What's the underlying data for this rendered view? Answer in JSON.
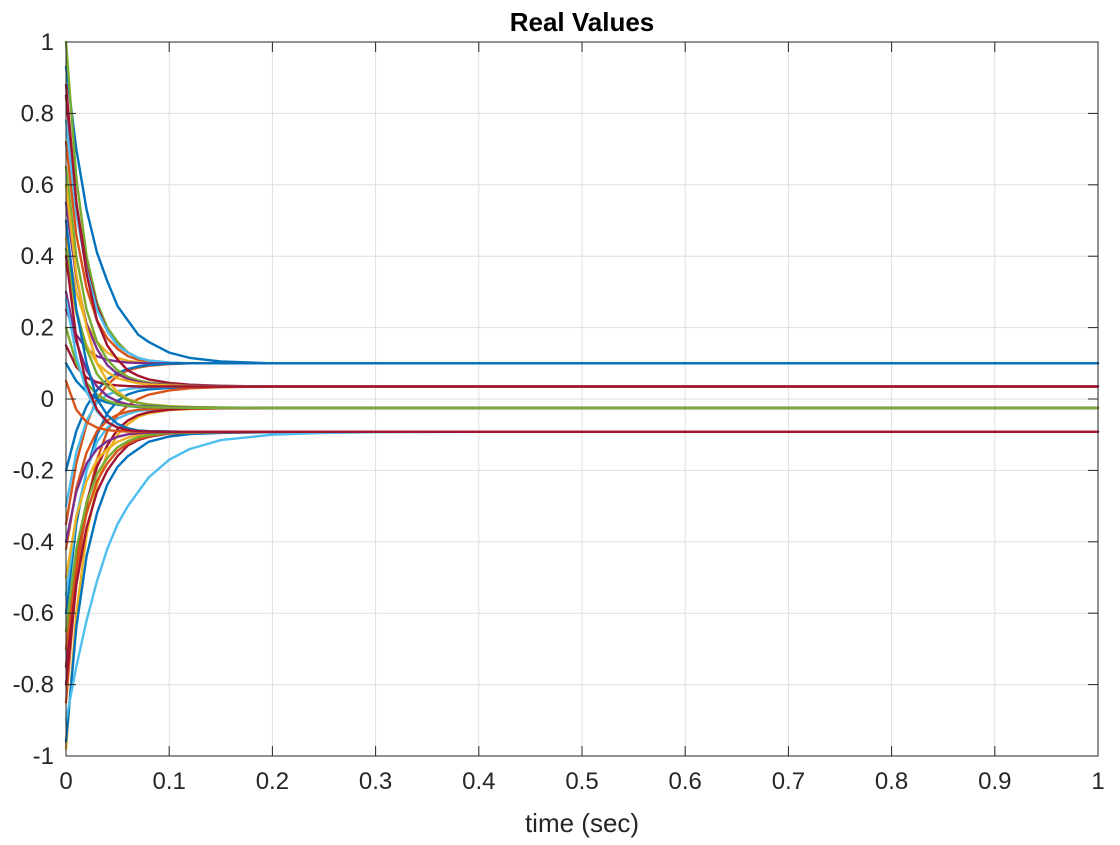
{
  "chart_data": {
    "type": "line",
    "title": "Real Values",
    "xlabel": "time (sec)",
    "ylabel": "",
    "xlim": [
      0,
      1
    ],
    "ylim": [
      -1,
      1
    ],
    "xticks": [
      "0",
      "0.1",
      "0.2",
      "0.3",
      "0.4",
      "0.5",
      "0.6",
      "0.7",
      "0.8",
      "0.9",
      "1"
    ],
    "yticks": [
      "1",
      "0.8",
      "0.6",
      "0.4",
      "0.2",
      "0",
      "-0.2",
      "-0.4",
      "-0.6",
      "-0.8",
      "-1"
    ],
    "grid": true,
    "legend": "none",
    "x": [
      0,
      0.01,
      0.02,
      0.03,
      0.04,
      0.05,
      0.06,
      0.07,
      0.08,
      0.1,
      0.12,
      0.15,
      0.2,
      0.25,
      0.3,
      0.4,
      0.5,
      0.7,
      1.0
    ],
    "series": [
      {
        "color": "#0072BD",
        "values": [
          0.93,
          0.7,
          0.53,
          0.41,
          0.33,
          0.26,
          0.22,
          0.18,
          0.16,
          0.13,
          0.115,
          0.105,
          0.1,
          0.1,
          0.1,
          0.1,
          0.1,
          0.1,
          0.1
        ]
      },
      {
        "color": "#D95319",
        "values": [
          0.72,
          0.46,
          0.31,
          0.22,
          0.17,
          0.14,
          0.12,
          0.11,
          0.105,
          0.1,
          0.1,
          0.1,
          0.1,
          0.1,
          0.1,
          0.1,
          0.1,
          0.1,
          0.1
        ]
      },
      {
        "color": "#77AC30",
        "values": [
          1.0,
          0.62,
          0.4,
          0.27,
          0.2,
          0.16,
          0.13,
          0.115,
          0.108,
          0.102,
          0.1,
          0.1,
          0.1,
          0.1,
          0.1,
          0.1,
          0.1,
          0.1,
          0.1
        ]
      },
      {
        "color": "#A2142F",
        "values": [
          0.85,
          0.55,
          0.37,
          0.26,
          0.19,
          0.15,
          0.13,
          0.115,
          0.107,
          0.101,
          0.1,
          0.1,
          0.1,
          0.1,
          0.1,
          0.1,
          0.1,
          0.1,
          0.1
        ]
      },
      {
        "color": "#EDB120",
        "values": [
          0.45,
          0.3,
          0.21,
          0.16,
          0.13,
          0.115,
          0.107,
          0.103,
          0.101,
          0.1,
          0.1,
          0.1,
          0.1,
          0.1,
          0.1,
          0.1,
          0.1,
          0.1,
          0.1
        ]
      },
      {
        "color": "#4DBEEE",
        "values": [
          0.78,
          0.52,
          0.36,
          0.25,
          0.19,
          0.15,
          0.13,
          0.115,
          0.108,
          0.102,
          0.1,
          0.1,
          0.1,
          0.1,
          0.1,
          0.1,
          0.1,
          0.1,
          0.1
        ]
      },
      {
        "color": "#7E2F8E",
        "values": [
          0.25,
          0.18,
          0.14,
          0.12,
          0.11,
          0.105,
          0.102,
          0.101,
          0.1,
          0.1,
          0.1,
          0.1,
          0.1,
          0.1,
          0.1,
          0.1,
          0.1,
          0.1,
          0.1
        ]
      },
      {
        "color": "#D95319",
        "values": [
          -0.35,
          -0.18,
          -0.07,
          0.0,
          0.04,
          0.065,
          0.08,
          0.088,
          0.093,
          0.098,
          0.1,
          0.1,
          0.1,
          0.1,
          0.1,
          0.1,
          0.1,
          0.1,
          0.1
        ]
      },
      {
        "color": "#0072BD",
        "values": [
          -0.2,
          -0.09,
          -0.02,
          0.025,
          0.055,
          0.073,
          0.084,
          0.091,
          0.095,
          0.099,
          0.1,
          0.1,
          0.1,
          0.1,
          0.1,
          0.1,
          0.1,
          0.1,
          0.1
        ]
      },
      {
        "color": "#A2142F",
        "values": [
          0.88,
          0.55,
          0.35,
          0.22,
          0.15,
          0.11,
          0.08,
          0.065,
          0.055,
          0.045,
          0.04,
          0.037,
          0.035,
          0.035,
          0.035,
          0.035,
          0.035,
          0.035,
          0.035
        ]
      },
      {
        "color": "#77AC30",
        "values": [
          0.65,
          0.4,
          0.25,
          0.16,
          0.11,
          0.08,
          0.062,
          0.052,
          0.046,
          0.04,
          0.037,
          0.036,
          0.035,
          0.035,
          0.035,
          0.035,
          0.035,
          0.035,
          0.035
        ]
      },
      {
        "color": "#7E2F8E",
        "values": [
          0.55,
          0.34,
          0.21,
          0.14,
          0.095,
          0.07,
          0.056,
          0.048,
          0.043,
          0.039,
          0.037,
          0.036,
          0.035,
          0.035,
          0.035,
          0.035,
          0.035,
          0.035,
          0.035
        ]
      },
      {
        "color": "#EDB120",
        "values": [
          0.38,
          0.24,
          0.15,
          0.1,
          0.075,
          0.058,
          0.05,
          0.044,
          0.041,
          0.038,
          0.036,
          0.035,
          0.035,
          0.035,
          0.035,
          0.035,
          0.035,
          0.035,
          0.035
        ]
      },
      {
        "color": "#0072BD",
        "values": [
          -0.6,
          -0.35,
          -0.2,
          -0.1,
          -0.04,
          -0.005,
          0.013,
          0.022,
          0.027,
          0.031,
          0.033,
          0.034,
          0.035,
          0.035,
          0.035,
          0.035,
          0.035,
          0.035,
          0.035
        ]
      },
      {
        "color": "#4DBEEE",
        "values": [
          -0.3,
          -0.15,
          -0.06,
          -0.01,
          0.012,
          0.022,
          0.028,
          0.031,
          0.033,
          0.034,
          0.035,
          0.035,
          0.035,
          0.035,
          0.035,
          0.035,
          0.035,
          0.035,
          0.035
        ]
      },
      {
        "color": "#D95319",
        "values": [
          -0.85,
          -0.5,
          -0.3,
          -0.17,
          -0.09,
          -0.045,
          -0.018,
          0.0,
          0.012,
          0.024,
          0.03,
          0.033,
          0.035,
          0.035,
          0.035,
          0.035,
          0.035,
          0.035,
          0.035
        ]
      },
      {
        "color": "#A2142F",
        "values": [
          0.15,
          0.09,
          0.06,
          0.047,
          0.041,
          0.038,
          0.036,
          0.035,
          0.035,
          0.035,
          0.035,
          0.035,
          0.035,
          0.035,
          0.035,
          0.035,
          0.035,
          0.035,
          0.035
        ]
      },
      {
        "color": "#EDB120",
        "values": [
          0.6,
          0.35,
          0.2,
          0.1,
          0.05,
          0.02,
          0.0,
          -0.01,
          -0.015,
          -0.02,
          -0.022,
          -0.024,
          -0.025,
          -0.025,
          -0.025,
          -0.025,
          -0.025,
          -0.025,
          -0.025
        ]
      },
      {
        "color": "#77AC30",
        "values": [
          0.42,
          0.25,
          0.14,
          0.07,
          0.035,
          0.012,
          -0.003,
          -0.011,
          -0.016,
          -0.021,
          -0.023,
          -0.024,
          -0.025,
          -0.025,
          -0.025,
          -0.025,
          -0.025,
          -0.025,
          -0.025
        ]
      },
      {
        "color": "#7E2F8E",
        "values": [
          0.3,
          0.16,
          0.08,
          0.035,
          0.008,
          -0.007,
          -0.015,
          -0.019,
          -0.021,
          -0.023,
          -0.024,
          -0.025,
          -0.025,
          -0.025,
          -0.025,
          -0.025,
          -0.025,
          -0.025,
          -0.025
        ]
      },
      {
        "color": "#EDB120",
        "values": [
          -0.98,
          -0.6,
          -0.38,
          -0.24,
          -0.15,
          -0.1,
          -0.07,
          -0.05,
          -0.04,
          -0.031,
          -0.028,
          -0.026,
          -0.025,
          -0.025,
          -0.025,
          -0.025,
          -0.025,
          -0.025,
          -0.025
        ]
      },
      {
        "color": "#4DBEEE",
        "values": [
          -0.55,
          -0.33,
          -0.2,
          -0.12,
          -0.08,
          -0.055,
          -0.042,
          -0.034,
          -0.03,
          -0.027,
          -0.026,
          -0.025,
          -0.025,
          -0.025,
          -0.025,
          -0.025,
          -0.025,
          -0.025,
          -0.025
        ]
      },
      {
        "color": "#D95319",
        "values": [
          -0.42,
          -0.25,
          -0.15,
          -0.09,
          -0.06,
          -0.044,
          -0.035,
          -0.03,
          -0.028,
          -0.026,
          -0.025,
          -0.025,
          -0.025,
          -0.025,
          -0.025,
          -0.025,
          -0.025,
          -0.025,
          -0.025
        ]
      },
      {
        "color": "#0072BD",
        "values": [
          0.1,
          0.05,
          0.02,
          0.0,
          -0.01,
          -0.016,
          -0.02,
          -0.022,
          -0.023,
          -0.024,
          -0.025,
          -0.025,
          -0.025,
          -0.025,
          -0.025,
          -0.025,
          -0.025,
          -0.025,
          -0.025
        ]
      },
      {
        "color": "#A2142F",
        "values": [
          -0.75,
          -0.46,
          -0.29,
          -0.19,
          -0.13,
          -0.085,
          -0.06,
          -0.045,
          -0.037,
          -0.03,
          -0.027,
          -0.026,
          -0.025,
          -0.025,
          -0.025,
          -0.025,
          -0.025,
          -0.025,
          -0.025
        ]
      },
      {
        "color": "#77AC30",
        "values": [
          0.2,
          0.1,
          0.045,
          0.012,
          -0.005,
          -0.014,
          -0.019,
          -0.021,
          -0.023,
          -0.024,
          -0.025,
          -0.025,
          -0.025,
          -0.025,
          -0.025,
          -0.025,
          -0.025,
          -0.025,
          -0.025
        ]
      },
      {
        "color": "#0072BD",
        "values": [
          -0.96,
          -0.64,
          -0.44,
          -0.32,
          -0.24,
          -0.19,
          -0.16,
          -0.14,
          -0.12,
          -0.105,
          -0.098,
          -0.095,
          -0.093,
          -0.092,
          -0.092,
          -0.092,
          -0.092,
          -0.092,
          -0.092
        ]
      },
      {
        "color": "#4DBEEE",
        "values": [
          -0.9,
          -0.75,
          -0.62,
          -0.51,
          -0.42,
          -0.35,
          -0.3,
          -0.26,
          -0.22,
          -0.17,
          -0.14,
          -0.115,
          -0.1,
          -0.095,
          -0.093,
          -0.092,
          -0.092,
          -0.092,
          -0.092
        ]
      },
      {
        "color": "#A2142F",
        "values": [
          -0.8,
          -0.52,
          -0.36,
          -0.26,
          -0.2,
          -0.16,
          -0.13,
          -0.115,
          -0.106,
          -0.097,
          -0.094,
          -0.093,
          -0.092,
          -0.092,
          -0.092,
          -0.092,
          -0.092,
          -0.092,
          -0.092
        ]
      },
      {
        "color": "#D95319",
        "values": [
          -0.7,
          -0.46,
          -0.32,
          -0.23,
          -0.18,
          -0.145,
          -0.125,
          -0.112,
          -0.104,
          -0.096,
          -0.094,
          -0.093,
          -0.092,
          -0.092,
          -0.092,
          -0.092,
          -0.092,
          -0.092,
          -0.092
        ]
      },
      {
        "color": "#EDB120",
        "values": [
          -0.5,
          -0.33,
          -0.23,
          -0.17,
          -0.14,
          -0.12,
          -0.108,
          -0.101,
          -0.097,
          -0.094,
          -0.093,
          -0.092,
          -0.092,
          -0.092,
          -0.092,
          -0.092,
          -0.092,
          -0.092,
          -0.092
        ]
      },
      {
        "color": "#77AC30",
        "values": [
          -0.65,
          -0.42,
          -0.29,
          -0.21,
          -0.165,
          -0.135,
          -0.118,
          -0.107,
          -0.101,
          -0.095,
          -0.093,
          -0.092,
          -0.092,
          -0.092,
          -0.092,
          -0.092,
          -0.092,
          -0.092,
          -0.092
        ]
      },
      {
        "color": "#7E2F8E",
        "values": [
          -0.4,
          -0.26,
          -0.18,
          -0.14,
          -0.118,
          -0.106,
          -0.099,
          -0.096,
          -0.094,
          -0.093,
          -0.092,
          -0.092,
          -0.092,
          -0.092,
          -0.092,
          -0.092,
          -0.092,
          -0.092,
          -0.092
        ]
      },
      {
        "color": "#0072BD",
        "values": [
          0.5,
          0.25,
          0.1,
          0.0,
          -0.045,
          -0.07,
          -0.082,
          -0.088,
          -0.09,
          -0.091,
          -0.092,
          -0.092,
          -0.092,
          -0.092,
          -0.092,
          -0.092,
          -0.092,
          -0.092,
          -0.092
        ]
      },
      {
        "color": "#4DBEEE",
        "values": [
          0.28,
          0.12,
          0.02,
          -0.035,
          -0.065,
          -0.08,
          -0.087,
          -0.09,
          -0.091,
          -0.092,
          -0.092,
          -0.092,
          -0.092,
          -0.092,
          -0.092,
          -0.092,
          -0.092,
          -0.092,
          -0.092
        ]
      },
      {
        "color": "#D95319",
        "values": [
          0.05,
          -0.03,
          -0.065,
          -0.08,
          -0.087,
          -0.09,
          -0.091,
          -0.092,
          -0.092,
          -0.092,
          -0.092,
          -0.092,
          -0.092,
          -0.092,
          -0.092,
          -0.092,
          -0.092,
          -0.092,
          -0.092
        ]
      },
      {
        "color": "#A2142F",
        "values": [
          0.4,
          0.17,
          0.04,
          -0.03,
          -0.065,
          -0.08,
          -0.087,
          -0.09,
          -0.091,
          -0.092,
          -0.092,
          -0.092,
          -0.092,
          -0.092,
          -0.092,
          -0.092,
          -0.092,
          -0.092,
          -0.092
        ]
      }
    ]
  }
}
